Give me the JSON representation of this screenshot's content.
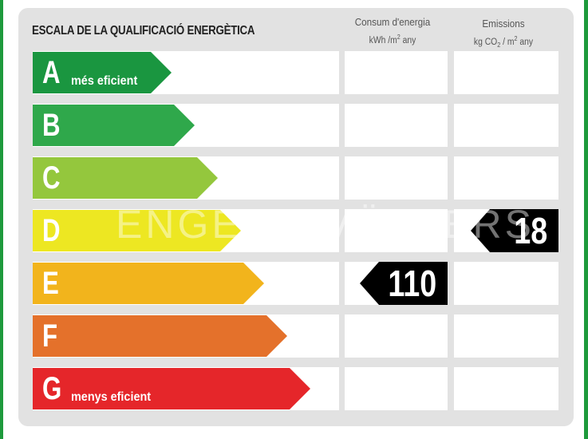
{
  "title": "ESCALA DE LA QUALIFICACIÓ ENERGÈTICA",
  "columns": {
    "consumption": {
      "label": "Consum d'energia",
      "unit_main": "kWh /m",
      "unit_sup": "2",
      "unit_tail": " any"
    },
    "emissions": {
      "label": "Emissions",
      "unit_main": "kg CO",
      "unit_sub": "2",
      "unit_mid": " / m",
      "unit_sup": "2",
      "unit_tail": " any"
    }
  },
  "ratings": [
    {
      "letter": "A",
      "description": "més eficient",
      "color": "#1a9640"
    },
    {
      "letter": "B",
      "description": "",
      "color": "#2fa84b"
    },
    {
      "letter": "C",
      "description": "",
      "color": "#94c73d"
    },
    {
      "letter": "D",
      "description": "",
      "color": "#ede722"
    },
    {
      "letter": "E",
      "description": "",
      "color": "#f2b41c"
    },
    {
      "letter": "F",
      "description": "",
      "color": "#e4712b"
    },
    {
      "letter": "G",
      "description": "menys eficient",
      "color": "#e5262a"
    }
  ],
  "consumption_indicator": {
    "rating": "E",
    "value": "110"
  },
  "emissions_indicator": {
    "rating": "D",
    "value": "18"
  },
  "watermark": "ENGEL & VÖLKERS",
  "colors": {
    "frame": "#1e9a3c",
    "panel": "#e2e2e2",
    "indicator": "#000000"
  }
}
